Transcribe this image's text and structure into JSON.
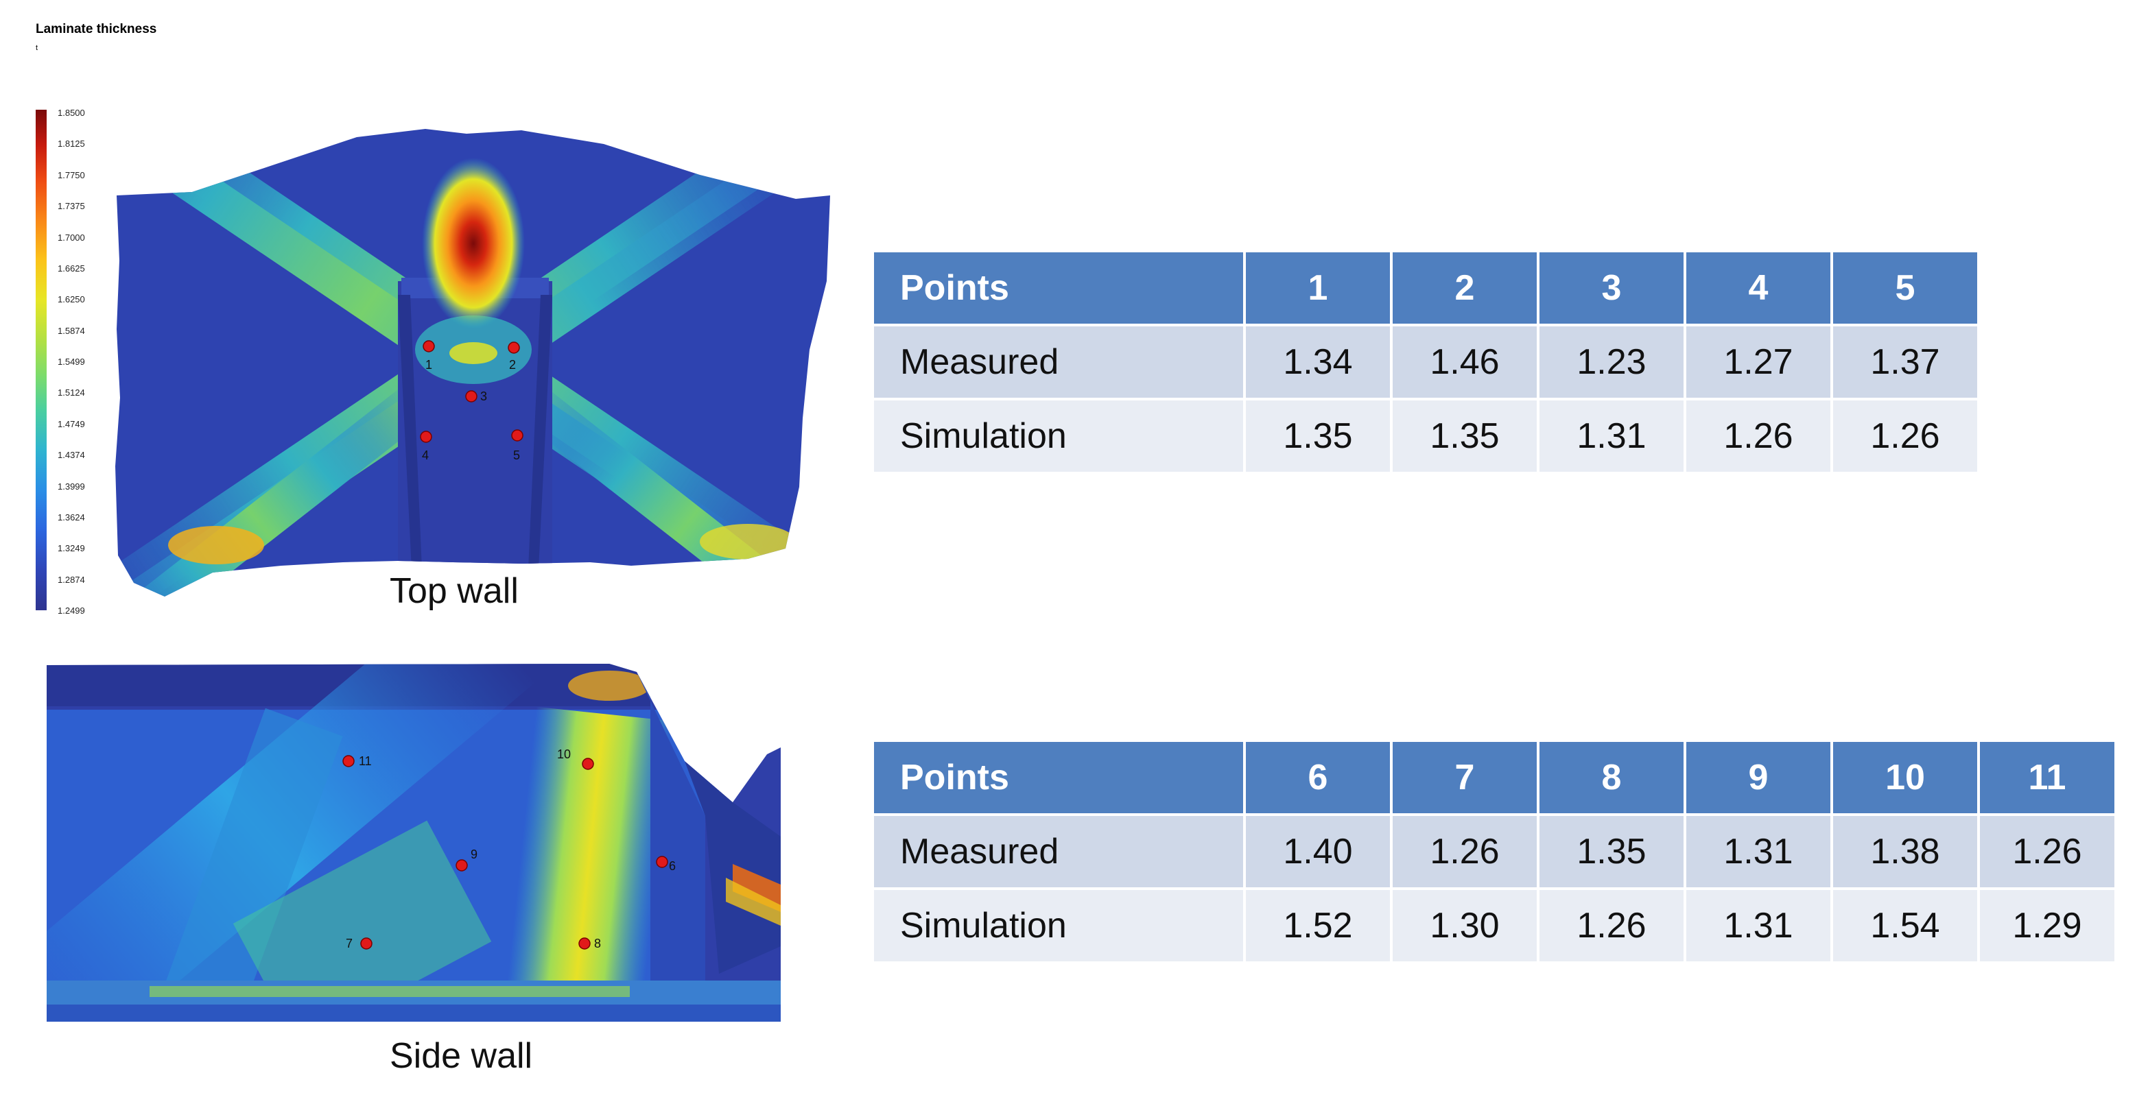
{
  "legend": {
    "title": "Laminate thickness",
    "unit": "t",
    "ticks": [
      "1.8500",
      "1.8125",
      "1.7750",
      "1.7375",
      "1.7000",
      "1.6625",
      "1.6250",
      "1.5874",
      "1.5499",
      "1.5124",
      "1.4749",
      "1.4374",
      "1.3999",
      "1.3624",
      "1.3249",
      "1.2874",
      "1.2499"
    ]
  },
  "top_wall": {
    "caption": "Top wall",
    "points": [
      "1",
      "2",
      "3",
      "4",
      "5"
    ]
  },
  "side_wall": {
    "caption": "Side wall",
    "points": [
      "6",
      "7",
      "8",
      "9",
      "10",
      "11"
    ]
  },
  "table_top": {
    "header": [
      "Points",
      "1",
      "2",
      "3",
      "4",
      "5"
    ],
    "rows": [
      [
        "Measured",
        "1.34",
        "1.46",
        "1.23",
        "1.27",
        "1.37"
      ],
      [
        "Simulation",
        "1.35",
        "1.35",
        "1.31",
        "1.26",
        "1.26"
      ]
    ]
  },
  "table_side": {
    "header": [
      "Points",
      "6",
      "7",
      "8",
      "9",
      "10",
      "11"
    ],
    "rows": [
      [
        "Measured",
        "1.40",
        "1.26",
        "1.35",
        "1.31",
        "1.38",
        "1.26"
      ],
      [
        "Simulation",
        "1.52",
        "1.30",
        "1.26",
        "1.31",
        "1.54",
        "1.29"
      ]
    ]
  },
  "colors": {
    "table_header": "#4f7fbf",
    "table_row_measured": "#cfd8e8",
    "table_row_simulation": "#e9edf4",
    "marker": "#e11a1a"
  }
}
